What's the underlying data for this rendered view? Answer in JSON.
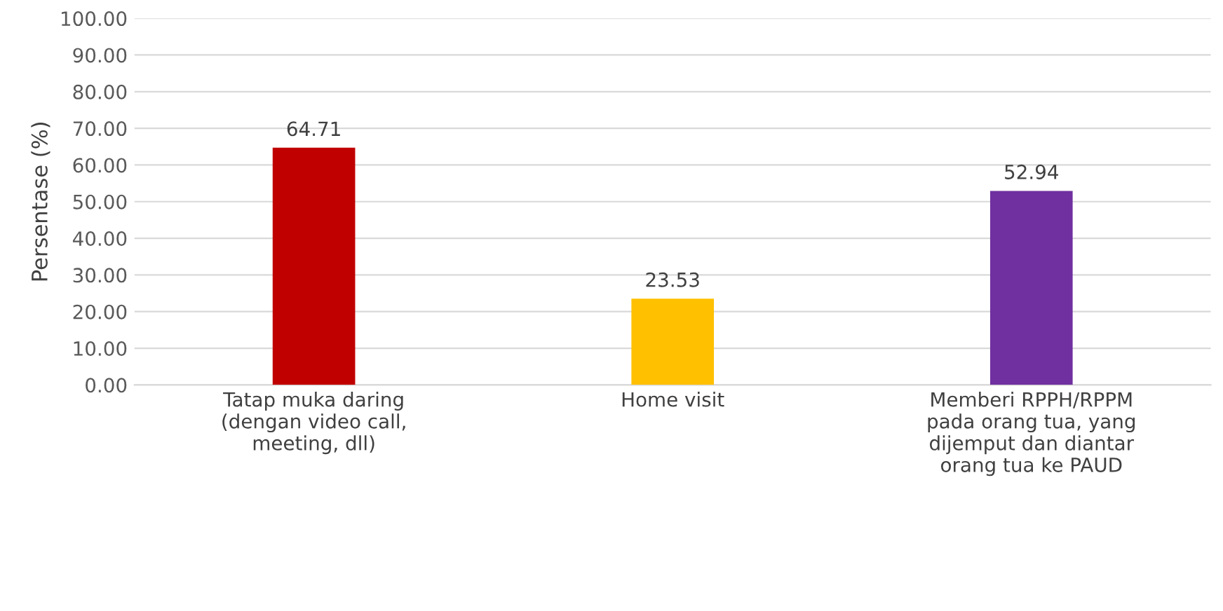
{
  "chart_data": {
    "type": "bar",
    "ylabel": "Persentase (%)",
    "categories": [
      "Tatap muka daring\n(dengan video call,\nmeeting, dll)",
      "Home visit",
      "Memberi RPPH/RPPM\npada orang tua, yang\ndijemput dan diantar\norang tua ke PAUD"
    ],
    "values": [
      64.71,
      23.53,
      52.94
    ],
    "colors": [
      "#c00000",
      "#ffc000",
      "#7030a0"
    ],
    "ylim": [
      0,
      100
    ],
    "yticks": [
      {
        "value": 0,
        "label": "0.00"
      },
      {
        "value": 10,
        "label": "10.00"
      },
      {
        "value": 20,
        "label": "20.00"
      },
      {
        "value": 30,
        "label": "30.00"
      },
      {
        "value": 40,
        "label": "40.00"
      },
      {
        "value": 50,
        "label": "50.00"
      },
      {
        "value": 60,
        "label": "60.00"
      },
      {
        "value": 70,
        "label": "70.00"
      },
      {
        "value": 80,
        "label": "80.00"
      },
      {
        "value": 90,
        "label": "90.00"
      },
      {
        "value": 100,
        "label": "100.00"
      }
    ],
    "grid": "y",
    "data_labels": true
  }
}
